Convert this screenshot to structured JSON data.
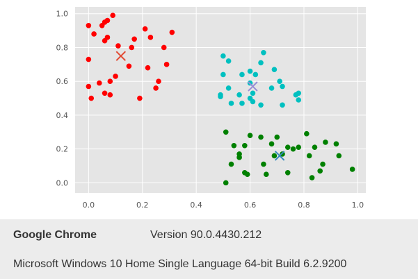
{
  "chart_data": {
    "type": "scatter",
    "title": "",
    "xlabel": "",
    "ylabel": "",
    "xlim": [
      -0.05,
      1.03
    ],
    "ylim": [
      -0.06,
      1.04
    ],
    "xticks": [
      "0.0",
      "0.2",
      "0.4",
      "0.6",
      "0.8",
      "1.0"
    ],
    "yticks": [
      "0.0",
      "0.2",
      "0.4",
      "0.6",
      "0.8",
      "1.0"
    ],
    "xtick_values": [
      0.0,
      0.2,
      0.4,
      0.6,
      0.8,
      1.0
    ],
    "ytick_values": [
      0.0,
      0.2,
      0.4,
      0.6,
      0.8,
      1.0
    ],
    "grid": true,
    "background": "#e5e5e5",
    "series": [
      {
        "color": "#ff0000",
        "points": [
          [
            0.09,
            0.99
          ],
          [
            0.07,
            0.96
          ],
          [
            0.05,
            0.93
          ],
          [
            0.0,
            0.93
          ],
          [
            0.02,
            0.88
          ],
          [
            0.06,
            0.95
          ],
          [
            0.07,
            0.86
          ],
          [
            0.06,
            0.84
          ],
          [
            0.11,
            0.81
          ],
          [
            0.16,
            0.8
          ],
          [
            0.17,
            0.85
          ],
          [
            0.21,
            0.91
          ],
          [
            0.23,
            0.86
          ],
          [
            0.28,
            0.8
          ],
          [
            0.31,
            0.89
          ],
          [
            0.0,
            0.73
          ],
          [
            0.15,
            0.69
          ],
          [
            0.22,
            0.68
          ],
          [
            0.29,
            0.7
          ],
          [
            0.26,
            0.6
          ],
          [
            0.25,
            0.56
          ],
          [
            0.19,
            0.5
          ],
          [
            0.08,
            0.6
          ],
          [
            0.1,
            0.63
          ],
          [
            0.04,
            0.59
          ],
          [
            0.0,
            0.57
          ],
          [
            0.06,
            0.53
          ],
          [
            0.08,
            0.52
          ],
          [
            0.01,
            0.5
          ]
        ],
        "centroid": [
          0.12,
          0.75
        ],
        "centroid_color": "#e24a33"
      },
      {
        "color": "#00c0c0",
        "points": [
          [
            0.5,
            0.75
          ],
          [
            0.52,
            0.72
          ],
          [
            0.6,
            0.66
          ],
          [
            0.65,
            0.77
          ],
          [
            0.64,
            0.71
          ],
          [
            0.69,
            0.67
          ],
          [
            0.5,
            0.64
          ],
          [
            0.57,
            0.64
          ],
          [
            0.62,
            0.64
          ],
          [
            0.52,
            0.56
          ],
          [
            0.56,
            0.52
          ],
          [
            0.61,
            0.53
          ],
          [
            0.71,
            0.6
          ],
          [
            0.72,
            0.57
          ],
          [
            0.78,
            0.53
          ],
          [
            0.77,
            0.52
          ],
          [
            0.78,
            0.49
          ],
          [
            0.49,
            0.52
          ],
          [
            0.49,
            0.51
          ],
          [
            0.53,
            0.47
          ],
          [
            0.57,
            0.47
          ],
          [
            0.6,
            0.5
          ],
          [
            0.61,
            0.48
          ],
          [
            0.64,
            0.46
          ],
          [
            0.72,
            0.46
          ],
          [
            0.6,
            0.59
          ],
          [
            0.68,
            0.56
          ]
        ],
        "centroid": [
          0.61,
          0.57
        ],
        "centroid_color": "#988ed5"
      },
      {
        "color": "#008000",
        "points": [
          [
            0.51,
            0.3
          ],
          [
            0.6,
            0.28
          ],
          [
            0.64,
            0.27
          ],
          [
            0.7,
            0.27
          ],
          [
            0.81,
            0.29
          ],
          [
            0.88,
            0.24
          ],
          [
            0.92,
            0.23
          ],
          [
            0.54,
            0.22
          ],
          [
            0.58,
            0.22
          ],
          [
            0.68,
            0.23
          ],
          [
            0.74,
            0.21
          ],
          [
            0.78,
            0.21
          ],
          [
            0.76,
            0.2
          ],
          [
            0.84,
            0.21
          ],
          [
            0.56,
            0.17
          ],
          [
            0.56,
            0.15
          ],
          [
            0.53,
            0.11
          ],
          [
            0.65,
            0.11
          ],
          [
            0.69,
            0.16
          ],
          [
            0.72,
            0.17
          ],
          [
            0.82,
            0.16
          ],
          [
            0.93,
            0.16
          ],
          [
            0.87,
            0.11
          ],
          [
            0.58,
            0.06
          ],
          [
            0.59,
            0.05
          ],
          [
            0.66,
            0.05
          ],
          [
            0.74,
            0.06
          ],
          [
            0.83,
            0.03
          ],
          [
            0.86,
            0.07
          ],
          [
            0.51,
            0.0
          ],
          [
            0.98,
            0.08
          ]
        ],
        "centroid": [
          0.71,
          0.16
        ],
        "centroid_color": "#348abd"
      }
    ]
  },
  "info": {
    "browser_name": "Google Chrome",
    "browser_version": "Version 90.0.4430.212",
    "os_info": "Microsoft Windows 10 Home Single Language 64-bit Build 6.2.9200"
  }
}
